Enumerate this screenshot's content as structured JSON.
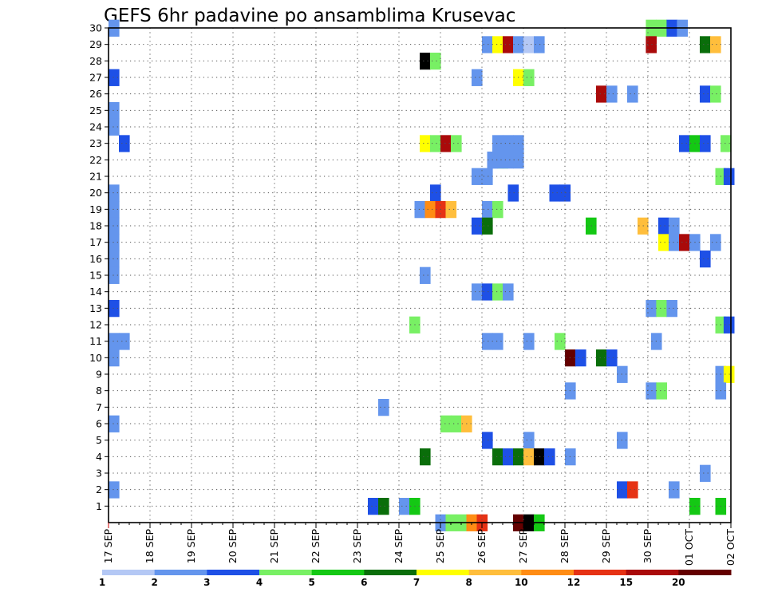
{
  "chart_data": {
    "type": "heatmap",
    "title": "GEFS 6hr padavine po ansamblima Krusevac",
    "xlabel": "",
    "ylabel": "",
    "y_ticks": [
      1,
      2,
      3,
      4,
      5,
      6,
      7,
      8,
      9,
      10,
      11,
      12,
      13,
      14,
      15,
      16,
      17,
      18,
      19,
      20,
      21,
      22,
      23,
      24,
      25,
      26,
      27,
      28,
      29,
      30
    ],
    "x_ticks": [
      "17 SEP",
      "18 SEP",
      "19 SEP",
      "20 SEP",
      "21 SEP",
      "22 SEP",
      "23 SEP",
      "24 SEP",
      "25 SEP",
      "26 SEP",
      "27 SEP",
      "28 SEP",
      "29 SEP",
      "30 SEP",
      "01 OCT",
      "02 OCT"
    ],
    "x_step_hours": 6,
    "x_range_steps": [
      0,
      60
    ],
    "y_range": [
      0,
      30
    ],
    "grid": true,
    "colorbar": {
      "colors": [
        "#b4c8f5",
        "#6495ed",
        "#1e50e6",
        "#78f064",
        "#14c814",
        "#0a6e0a",
        "#ffff00",
        "#ffbe3c",
        "#ff8c14",
        "#e63214",
        "#aa0a0a",
        "#640000"
      ],
      "labels": [
        "1",
        "2",
        "3",
        "4",
        "5",
        "6",
        "7",
        "8",
        "10",
        "12",
        "15",
        "20"
      ]
    },
    "cells": [
      [
        30,
        0.5,
        1
      ],
      [
        30,
        52.3,
        3
      ],
      [
        30,
        53.3,
        3
      ],
      [
        30,
        54.3,
        2
      ],
      [
        30,
        55.3,
        1
      ],
      [
        29,
        36.5,
        1
      ],
      [
        29,
        37.5,
        6
      ],
      [
        29,
        38.5,
        10
      ],
      [
        29,
        39.5,
        1
      ],
      [
        29,
        40.5,
        0
      ],
      [
        29,
        41.5,
        1
      ],
      [
        29,
        52.3,
        10
      ],
      [
        29,
        57.5,
        5
      ],
      [
        29,
        58.5,
        7
      ],
      [
        28,
        30.5,
        12
      ],
      [
        28,
        31.5,
        3
      ],
      [
        27,
        0.5,
        2
      ],
      [
        27,
        35.5,
        1
      ],
      [
        27,
        39.5,
        6
      ],
      [
        27,
        40.5,
        3
      ],
      [
        26,
        47.5,
        10
      ],
      [
        26,
        48.5,
        1
      ],
      [
        26,
        50.5,
        1
      ],
      [
        26,
        57.5,
        2
      ],
      [
        26,
        58.5,
        3
      ],
      [
        25,
        0.5,
        1
      ],
      [
        24,
        0.5,
        1
      ],
      [
        23,
        1.5,
        2
      ],
      [
        23,
        30.5,
        6
      ],
      [
        23,
        31.5,
        3
      ],
      [
        23,
        32.5,
        10
      ],
      [
        23,
        33.5,
        3
      ],
      [
        23,
        37.5,
        1
      ],
      [
        23,
        38.5,
        1
      ],
      [
        23,
        39.5,
        1
      ],
      [
        23,
        55.5,
        2
      ],
      [
        23,
        56.5,
        4
      ],
      [
        23,
        57.5,
        2
      ],
      [
        23,
        59.5,
        3
      ],
      [
        22,
        37,
        1
      ],
      [
        22,
        38,
        3
      ],
      [
        22,
        37.5,
        1
      ],
      [
        22,
        38.5,
        1
      ],
      [
        22,
        39.5,
        1
      ],
      [
        21,
        35.5,
        1
      ],
      [
        21,
        36.5,
        1
      ],
      [
        21,
        59,
        3
      ],
      [
        21,
        59.8,
        2
      ],
      [
        20,
        0.5,
        1
      ],
      [
        20,
        31.5,
        2
      ],
      [
        20,
        39,
        2
      ],
      [
        20,
        43,
        2
      ],
      [
        20,
        44,
        2
      ],
      [
        19,
        0.5,
        1
      ],
      [
        19,
        30,
        1
      ],
      [
        19,
        31,
        8
      ],
      [
        19,
        32,
        9
      ],
      [
        19,
        33,
        7
      ],
      [
        19,
        36.5,
        1
      ],
      [
        19,
        37.5,
        3
      ],
      [
        18,
        0.5,
        1
      ],
      [
        18,
        35.5,
        2
      ],
      [
        18,
        36.5,
        5
      ],
      [
        18,
        46.5,
        4
      ],
      [
        18,
        51.5,
        7
      ],
      [
        18,
        53.5,
        2
      ],
      [
        18,
        54.5,
        1
      ],
      [
        17,
        0.5,
        1
      ],
      [
        17,
        53.5,
        6
      ],
      [
        17,
        54.5,
        1
      ],
      [
        17,
        55.5,
        10
      ],
      [
        17,
        56.5,
        1
      ],
      [
        17,
        58.5,
        1
      ],
      [
        16,
        0.5,
        1
      ],
      [
        16,
        57.5,
        2
      ],
      [
        15,
        0.5,
        1
      ],
      [
        15,
        30.5,
        1
      ],
      [
        14,
        35.5,
        1
      ],
      [
        14,
        36.5,
        2
      ],
      [
        14,
        37.5,
        3
      ],
      [
        14,
        38.5,
        1
      ],
      [
        13,
        0.5,
        2
      ],
      [
        13,
        52.3,
        1
      ],
      [
        13,
        53.3,
        3
      ],
      [
        13,
        54.3,
        1
      ],
      [
        12,
        29.5,
        3
      ],
      [
        12,
        59,
        3
      ],
      [
        12,
        59.8,
        2
      ],
      [
        11,
        0.5,
        1
      ],
      [
        11,
        1.5,
        1
      ],
      [
        11,
        36.5,
        1
      ],
      [
        11,
        37.5,
        1
      ],
      [
        11,
        40.5,
        1
      ],
      [
        11,
        43.5,
        3
      ],
      [
        11,
        52.8,
        1
      ],
      [
        10,
        0.5,
        1
      ],
      [
        10,
        44.5,
        11
      ],
      [
        10,
        45.5,
        2
      ],
      [
        10,
        47.5,
        5
      ],
      [
        10,
        48.5,
        2
      ],
      [
        9,
        49.5,
        1
      ],
      [
        9,
        59,
        1
      ],
      [
        9,
        59.8,
        6
      ],
      [
        8,
        44.5,
        1
      ],
      [
        8,
        52.3,
        1
      ],
      [
        8,
        53.3,
        3
      ],
      [
        8,
        59,
        1
      ],
      [
        7,
        26.5,
        1
      ],
      [
        6,
        0.5,
        1
      ],
      [
        6,
        32.5,
        3
      ],
      [
        6,
        33.5,
        3
      ],
      [
        6,
        34.5,
        7
      ],
      [
        5,
        36.5,
        2
      ],
      [
        5,
        40.5,
        1
      ],
      [
        5,
        49.5,
        1
      ],
      [
        4,
        30.5,
        5
      ],
      [
        4,
        37.5,
        5
      ],
      [
        4,
        38.5,
        2
      ],
      [
        4,
        39.5,
        5
      ],
      [
        4,
        40.5,
        7
      ],
      [
        4,
        41.5,
        12
      ],
      [
        4,
        42.5,
        2
      ],
      [
        4,
        44.5,
        1
      ],
      [
        3,
        57.5,
        1
      ],
      [
        2,
        0.5,
        1
      ],
      [
        2,
        49.5,
        2
      ],
      [
        2,
        50.5,
        9
      ],
      [
        2,
        54.5,
        1
      ],
      [
        1,
        25.5,
        2
      ],
      [
        1,
        26.5,
        5
      ],
      [
        1,
        28.5,
        1
      ],
      [
        1,
        29.5,
        4
      ],
      [
        1,
        56.5,
        4
      ],
      [
        1,
        59,
        4
      ],
      [
        0,
        32,
        1
      ],
      [
        0,
        33,
        3
      ],
      [
        0,
        34,
        3
      ],
      [
        0,
        35,
        8
      ],
      [
        0,
        36,
        9
      ],
      [
        0,
        39.5,
        11
      ],
      [
        0,
        40.5,
        12
      ],
      [
        0,
        41.5,
        4
      ]
    ]
  }
}
